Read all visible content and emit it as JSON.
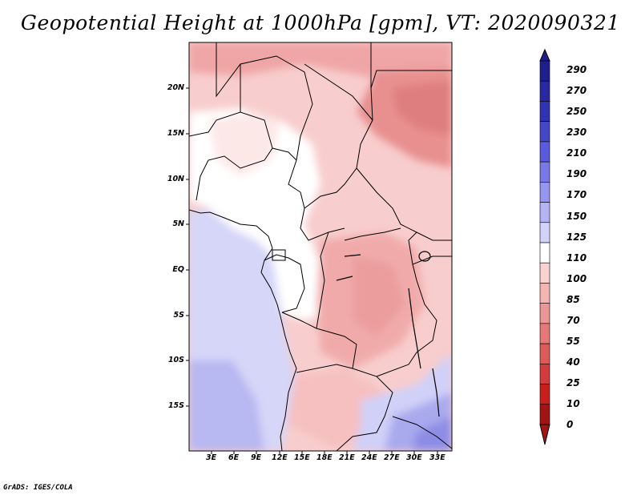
{
  "title": "Geopotential Height at 1000hPa [gpm], VT: 2020090321",
  "credit": "GrADS: IGES/COLA",
  "map": {
    "variable": "Geopotential Height",
    "level": "1000hPa",
    "units": "gpm",
    "valid_time": "2020090321",
    "lon_range": [
      0,
      35
    ],
    "lat_range": [
      -20,
      25
    ],
    "lon_ticks": [
      "3E",
      "6E",
      "9E",
      "12E",
      "15E",
      "18E",
      "21E",
      "24E",
      "27E",
      "30E",
      "33E"
    ],
    "lat_ticks": [
      "20N",
      "15N",
      "10N",
      "5N",
      "EQ",
      "5S",
      "10S",
      "15S"
    ]
  },
  "colorbar": {
    "labels": [
      "290",
      "270",
      "250",
      "230",
      "210",
      "190",
      "170",
      "150",
      "125",
      "110",
      "100",
      "85",
      "70",
      "55",
      "40",
      "25",
      "10",
      "0"
    ],
    "colors": [
      "#1e1e8c",
      "#2828a0",
      "#3232b4",
      "#4646c8",
      "#5a5adc",
      "#7878e6",
      "#9696f0",
      "#b4b4f5",
      "#d2d2fa",
      "#ffffff",
      "#fad2d2",
      "#f5b4b4",
      "#eb9696",
      "#e67878",
      "#dc5a5a",
      "#d23c3c",
      "#c81e1e",
      "#a01414"
    ]
  }
}
